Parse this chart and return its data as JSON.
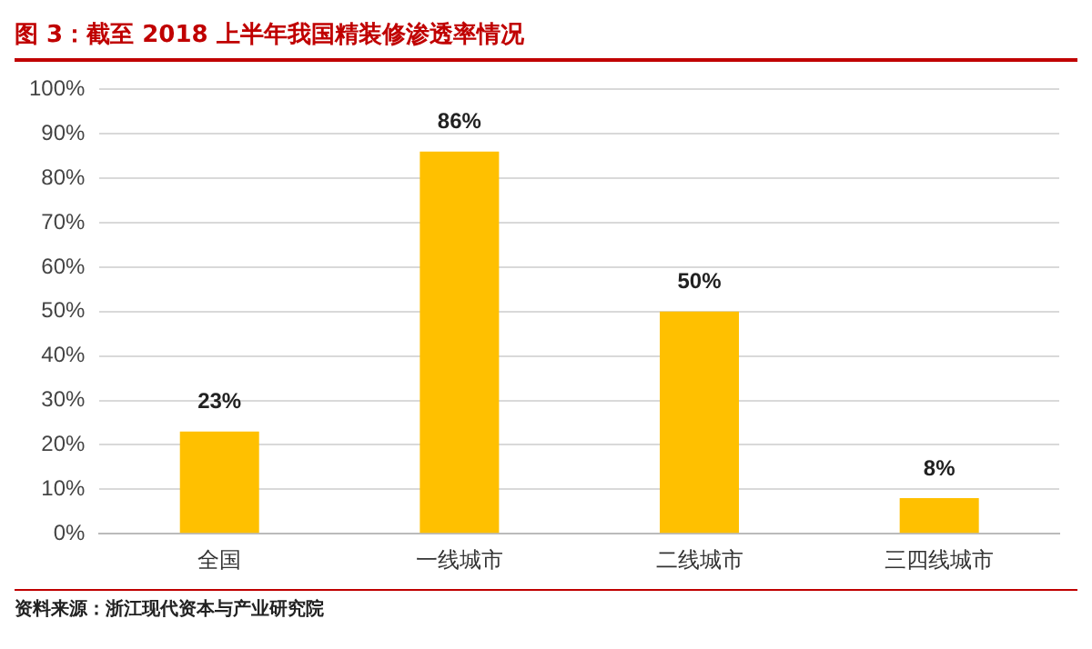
{
  "chart_data": {
    "type": "bar",
    "title": "图 3：截至 2018 上半年我国精装修渗透率情况",
    "categories": [
      "全国",
      "一线城市",
      "二线城市",
      "三四线城市"
    ],
    "values": [
      23,
      86,
      50,
      8
    ],
    "color": "#ffc000",
    "value_labels": [
      "23%",
      "86%",
      "50%",
      "8%"
    ],
    "ylim": [
      0,
      100
    ],
    "yticks": [
      {
        "value": 0,
        "label": "0%"
      },
      {
        "value": 10,
        "label": "10%"
      },
      {
        "value": 20,
        "label": "20%"
      },
      {
        "value": 30,
        "label": "30%"
      },
      {
        "value": 40,
        "label": "40%"
      },
      {
        "value": 50,
        "label": "50%"
      },
      {
        "value": 60,
        "label": "60%"
      },
      {
        "value": 70,
        "label": "70%"
      },
      {
        "value": 80,
        "label": "80%"
      },
      {
        "value": 90,
        "label": "90%"
      },
      {
        "value": 100,
        "label": "100%"
      }
    ],
    "grid": "y",
    "annotations": [
      "资料来源：浙江现代资本与产业研究院"
    ]
  }
}
